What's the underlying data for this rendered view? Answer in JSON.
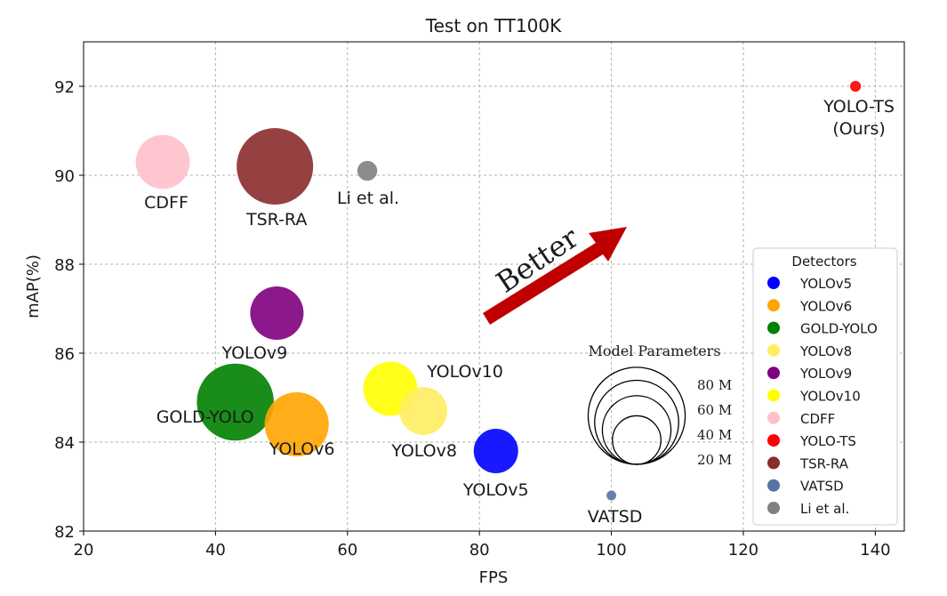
{
  "chart_data": {
    "type": "scatter",
    "title": "Test on TT100K",
    "xlabel": "FPS",
    "ylabel": "mAP(%)",
    "xlim": [
      20,
      145
    ],
    "ylim": [
      82,
      93
    ],
    "xticks": [
      20,
      40,
      60,
      80,
      100,
      120,
      140
    ],
    "yticks": [
      82,
      84,
      86,
      88,
      90,
      92
    ],
    "grid": true,
    "legend": {
      "title": "Detectors",
      "position": "lower-right"
    },
    "series": [
      {
        "name": "YOLOv5",
        "label": "YOLOv5",
        "x": 82.5,
        "y": 83.8,
        "color": "#0000ff",
        "params": 25
      },
      {
        "name": "YOLOv6",
        "label": "YOLOv6",
        "x": 52.3,
        "y": 84.4,
        "color": "#ffa500",
        "params": 52
      },
      {
        "name": "GOLD-YOLO",
        "label": "GOLD-YOLO",
        "x": 43.0,
        "y": 84.9,
        "color": "#008000",
        "params": 75
      },
      {
        "name": "YOLOv8",
        "label": "YOLOv8",
        "x": 71.5,
        "y": 84.7,
        "color": "#ffed60",
        "params": 29
      },
      {
        "name": "YOLOv9",
        "label": "YOLOv9",
        "x": 49.3,
        "y": 86.9,
        "color": "#800080",
        "params": 36
      },
      {
        "name": "YOLOv10",
        "label": "YOLOv10",
        "x": 66.5,
        "y": 85.2,
        "color": "#ffff00",
        "params": 37
      },
      {
        "name": "CDFF",
        "label": "CDFF",
        "x": 32.0,
        "y": 90.3,
        "color": "#ffc0cb",
        "params": 37
      },
      {
        "name": "YOLO-TS",
        "label": "YOLO-TS\n(Ours)",
        "x": 137.0,
        "y": 92.0,
        "color": "#ff0000",
        "params": 1.5
      },
      {
        "name": "TSR-RA",
        "label": "TSR-RA",
        "x": 49.0,
        "y": 90.2,
        "color": "#8b2c2c",
        "params": 74
      },
      {
        "name": "VATSD",
        "label": "VATSD",
        "x": 100.0,
        "y": 82.8,
        "color": "#5a73a6",
        "params": 1.2
      },
      {
        "name": "Li et al.",
        "label": "Li et al.",
        "x": 63.0,
        "y": 90.1,
        "color": "#808080",
        "params": 5
      }
    ],
    "size_legend": {
      "title": "Model Parameters",
      "entries": [
        {
          "label": "80 M",
          "value": 80
        },
        {
          "label": "60 M",
          "value": 60
        },
        {
          "label": "40 M",
          "value": 40
        },
        {
          "label": "20 M",
          "value": 20
        }
      ]
    },
    "annotation": {
      "text": "Better",
      "color": "#c00000"
    }
  }
}
